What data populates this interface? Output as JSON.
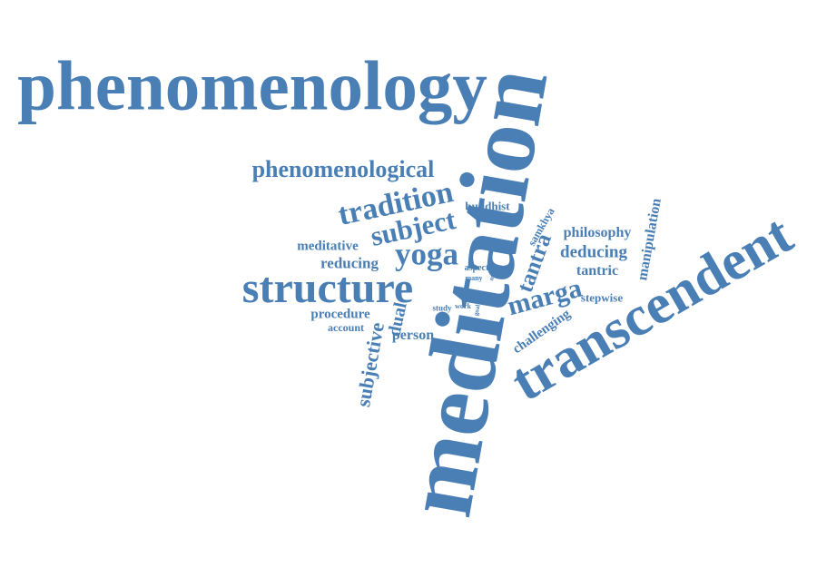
{
  "cloud": {
    "color": "#4a7fb5",
    "words": [
      {
        "id": "phenomenology",
        "text": "phenomenology"
      },
      {
        "id": "meditation",
        "text": "meditation"
      },
      {
        "id": "transcendent",
        "text": "transcendent"
      },
      {
        "id": "structure",
        "text": "structure"
      },
      {
        "id": "phenomenological",
        "text": "phenomenological"
      },
      {
        "id": "tradition",
        "text": "tradition"
      },
      {
        "id": "subject",
        "text": "subject"
      },
      {
        "id": "yoga",
        "text": "yoga"
      },
      {
        "id": "buddhist",
        "text": "buddhist"
      },
      {
        "id": "meditative",
        "text": "meditative"
      },
      {
        "id": "reducing",
        "text": "reducing"
      },
      {
        "id": "procedure",
        "text": "procedure"
      },
      {
        "id": "account",
        "text": "account"
      },
      {
        "id": "person",
        "text": "person"
      },
      {
        "id": "subjective",
        "text": "subjective"
      },
      {
        "id": "dual",
        "text": "dual"
      },
      {
        "id": "study",
        "text": "study"
      },
      {
        "id": "work",
        "text": "work"
      },
      {
        "id": "goal",
        "text": "goal"
      },
      {
        "id": "aspect",
        "text": "aspect"
      },
      {
        "id": "many",
        "text": "many"
      },
      {
        "id": "more",
        "text": "more"
      },
      {
        "id": "tantra",
        "text": "tantra"
      },
      {
        "id": "samkhya",
        "text": "samkhya"
      },
      {
        "id": "philosophy",
        "text": "philosophy"
      },
      {
        "id": "deducing",
        "text": "deducing"
      },
      {
        "id": "tantric",
        "text": "tantric"
      },
      {
        "id": "marga",
        "text": "marga"
      },
      {
        "id": "stepwise",
        "text": "stepwise"
      },
      {
        "id": "challenging",
        "text": "challenging"
      },
      {
        "id": "manipulation",
        "text": "manipulation"
      }
    ]
  }
}
